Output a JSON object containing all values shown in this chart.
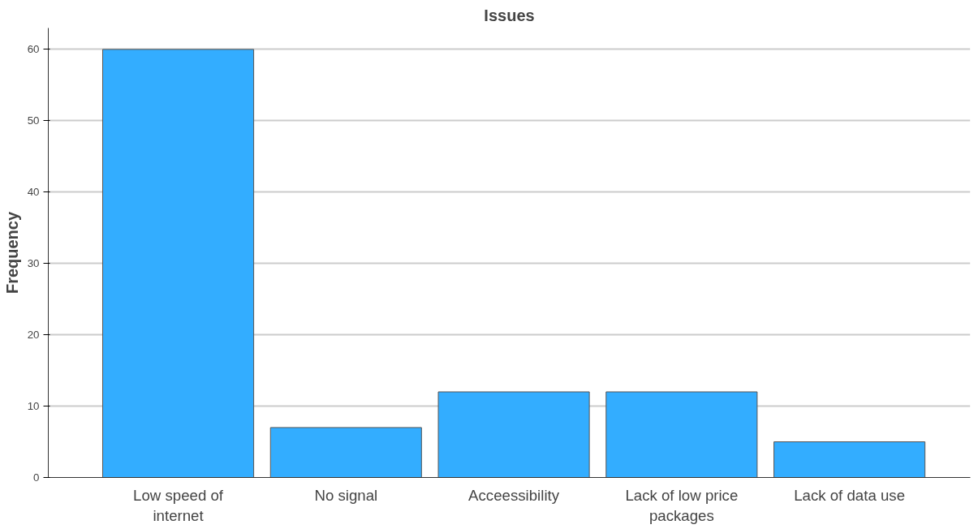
{
  "chart_data": {
    "type": "bar",
    "title": "Issues",
    "ylabel": "Frequency",
    "categories": [
      "Low speed of internet",
      "No signal",
      "Acceessibility",
      "Lack of low price packages",
      "Lack of data use"
    ],
    "values": [
      60,
      7,
      12,
      12,
      5
    ],
    "color": "#33adff",
    "ylim": [
      0,
      63
    ],
    "yticks": [
      0,
      10,
      20,
      30,
      40,
      50,
      60
    ],
    "grid": "y"
  }
}
